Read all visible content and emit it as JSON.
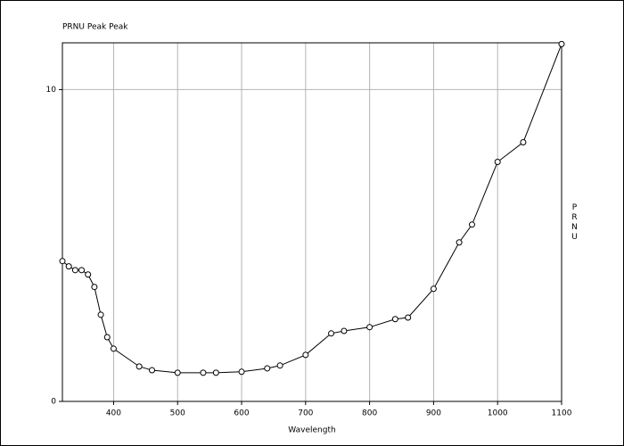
{
  "chart_data": {
    "type": "line",
    "title": "PRNU Peak Peak",
    "x_label": "Wavelength",
    "y_label": "PRNU",
    "x": [
      320,
      330,
      340,
      350,
      360,
      370,
      380,
      390,
      400,
      440,
      460,
      500,
      540,
      560,
      600,
      640,
      660,
      700,
      740,
      760,
      800,
      840,
      860,
      900,
      940,
      960,
      1000,
      1040,
      1100
    ],
    "series": [
      {
        "name": "PRNU",
        "color": "#000000",
        "values": [
          4.5,
          4.33,
          4.21,
          4.21,
          4.07,
          3.67,
          2.78,
          2.06,
          1.69,
          1.12,
          1.0,
          0.92,
          0.92,
          0.92,
          0.95,
          1.06,
          1.15,
          1.49,
          2.18,
          2.26,
          2.38,
          2.64,
          2.69,
          3.61,
          5.1,
          5.67,
          7.68,
          8.31,
          11.46
        ]
      }
    ],
    "xlim": [
      320,
      1100
    ],
    "xticks": [
      400,
      500,
      600,
      700,
      800,
      900,
      1000,
      1100
    ],
    "ylim": [
      0,
      11.5
    ],
    "yticks": [
      0,
      10
    ],
    "grid": true
  }
}
